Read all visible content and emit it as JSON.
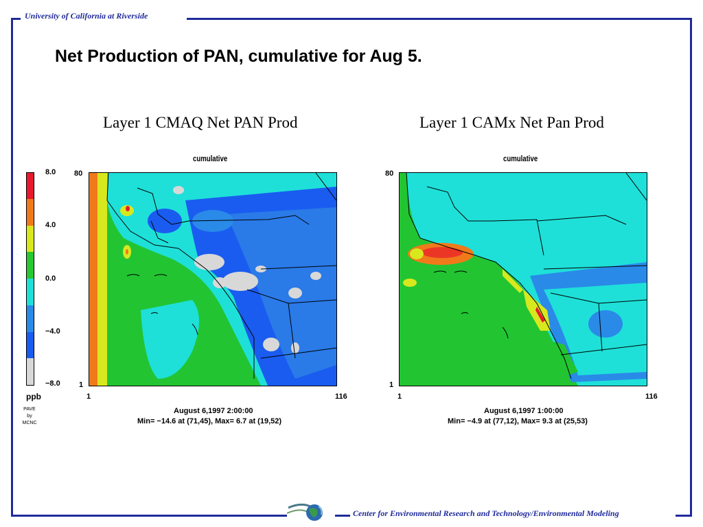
{
  "header": {
    "org": "University of California at Riverside"
  },
  "footer": {
    "center": "Center for Environmental Research and Technology/Environmental Modeling"
  },
  "slide": {
    "title": "Net Production of PAN, cumulative for Aug 5."
  },
  "colorbar": {
    "ticks": [
      "8.0",
      "4.0",
      "0.0",
      "−4.0",
      "−8.0"
    ],
    "unit": "ppb",
    "credit": [
      "PAVE",
      "by",
      "MCNC"
    ],
    "colors": [
      "#e8192c",
      "#f07a1a",
      "#d8e81e",
      "#28c830",
      "#1ee0d8",
      "#2a8ae8",
      "#1a5cf0",
      "#d8d8d8"
    ]
  },
  "chart_data": [
    {
      "type": "heatmap",
      "title": "Layer 1  CMAQ  Net PAN Prod",
      "subtitle": "cumulative",
      "x_range": [
        1,
        116
      ],
      "y_range": [
        1,
        80
      ],
      "x_tick_labels": [
        "1",
        "116"
      ],
      "y_tick_labels": [
        "80",
        "1"
      ],
      "date": "August 6,1997 2:00:00",
      "stats": "Min=   −14.6 at (71,45), Max=    6.7 at (19,52)",
      "min": {
        "value": -14.6,
        "x": 71,
        "y": 45
      },
      "max": {
        "value": 6.7,
        "x": 19,
        "y": 52
      },
      "unit": "ppb",
      "color_scale": [
        -8.0,
        8.0
      ]
    },
    {
      "type": "heatmap",
      "title": "Layer 1  CAMx  Net Pan Prod",
      "subtitle": "cumulative",
      "x_range": [
        1,
        116
      ],
      "y_range": [
        1,
        80
      ],
      "x_tick_labels": [
        "1",
        "116"
      ],
      "y_tick_labels": [
        "80",
        "1"
      ],
      "date": "August 6,1997 1:00:00",
      "stats": "Min=   −4.9 at (77,12), Max=    9.3 at (25,53)",
      "min": {
        "value": -4.9,
        "x": 77,
        "y": 12
      },
      "max": {
        "value": 9.3,
        "x": 25,
        "y": 53
      },
      "unit": "ppb",
      "color_scale": [
        -8.0,
        8.0
      ]
    }
  ]
}
